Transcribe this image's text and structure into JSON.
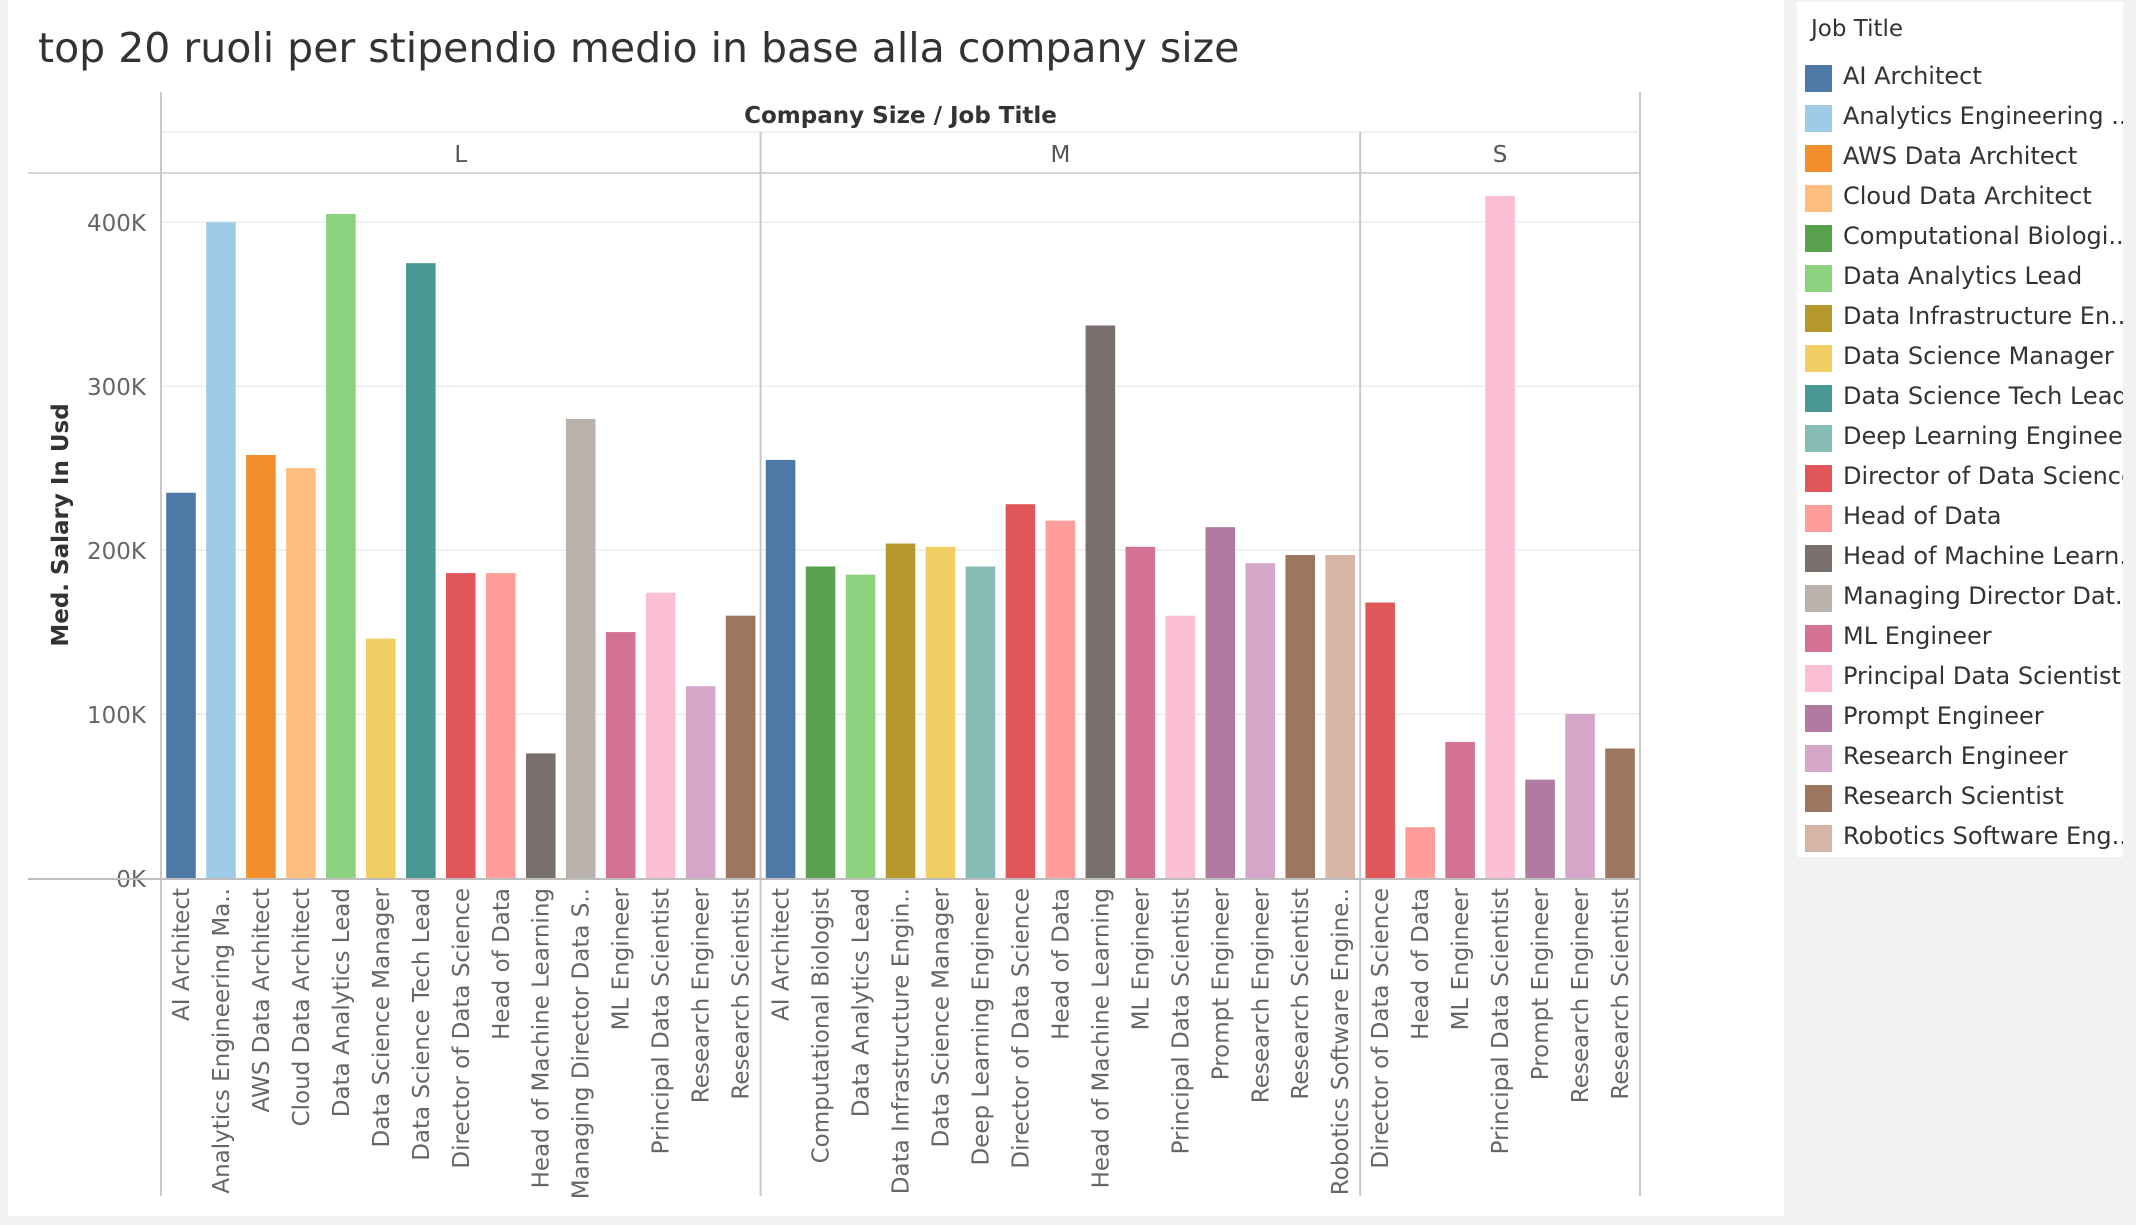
{
  "chart_data": {
    "type": "bar",
    "title": "top 20 ruoli per stipendio medio in base alla company size",
    "header": "Company Size  /  Job Title",
    "ylabel": "Med. Salary In Usd",
    "ylim": [
      0,
      430000
    ],
    "yticks": [
      0,
      100000,
      200000,
      300000,
      400000
    ],
    "ytick_labels": [
      "0K",
      "100K",
      "200K",
      "300K",
      "400K"
    ],
    "grid": true,
    "legend_title": "Job Title",
    "legend_position": "right",
    "legend": [
      {
        "label": "AI Architect",
        "color": "#4e79a7"
      },
      {
        "label": "Analytics Engineering ..",
        "color": "#a0cbe8"
      },
      {
        "label": "AWS Data Architect",
        "color": "#f28e2b"
      },
      {
        "label": "Cloud Data Architect",
        "color": "#ffbe7d"
      },
      {
        "label": "Computational Biologi..",
        "color": "#59a14f"
      },
      {
        "label": "Data Analytics Lead",
        "color": "#8cd17d"
      },
      {
        "label": "Data Infrastructure En..",
        "color": "#b6992d"
      },
      {
        "label": "Data Science Manager",
        "color": "#f1ce63"
      },
      {
        "label": "Data Science Tech Lead",
        "color": "#499894"
      },
      {
        "label": "Deep Learning Engineer",
        "color": "#86bcb6"
      },
      {
        "label": "Director of Data Science",
        "color": "#e15759"
      },
      {
        "label": "Head of Data",
        "color": "#ff9d9a"
      },
      {
        "label": "Head of Machine Learn..",
        "color": "#79706e"
      },
      {
        "label": "Managing Director Dat..",
        "color": "#bab0ac"
      },
      {
        "label": "ML Engineer",
        "color": "#d37295"
      },
      {
        "label": "Principal Data Scientist",
        "color": "#fabfd2"
      },
      {
        "label": "Prompt Engineer",
        "color": "#b07aa1"
      },
      {
        "label": "Research Engineer",
        "color": "#d4a6c8"
      },
      {
        "label": "Research Scientist",
        "color": "#9d7660"
      },
      {
        "label": "Robotics Software Eng..",
        "color": "#d7b5a6"
      }
    ],
    "groups": [
      {
        "name": "L",
        "bars": [
          {
            "label": "AI Architect",
            "value": 235000,
            "color": "#4e79a7"
          },
          {
            "label": "Analytics Engineering Ma..",
            "value": 400000,
            "color": "#a0cbe8"
          },
          {
            "label": "AWS Data Architect",
            "value": 258000,
            "color": "#f28e2b"
          },
          {
            "label": "Cloud Data Architect",
            "value": 250000,
            "color": "#ffbe7d"
          },
          {
            "label": "Data Analytics Lead",
            "value": 405000,
            "color": "#8cd17d"
          },
          {
            "label": "Data Science Manager",
            "value": 146000,
            "color": "#f1ce63"
          },
          {
            "label": "Data Science Tech Lead",
            "value": 375000,
            "color": "#499894"
          },
          {
            "label": "Director of Data Science",
            "value": 186000,
            "color": "#e15759"
          },
          {
            "label": "Head of Data",
            "value": 186000,
            "color": "#ff9d9a"
          },
          {
            "label": "Head of Machine Learning",
            "value": 76000,
            "color": "#79706e"
          },
          {
            "label": "Managing Director Data S..",
            "value": 280000,
            "color": "#bab0ac"
          },
          {
            "label": "ML Engineer",
            "value": 150000,
            "color": "#d37295"
          },
          {
            "label": "Principal Data Scientist",
            "value": 174000,
            "color": "#fabfd2"
          },
          {
            "label": "Research Engineer",
            "value": 117000,
            "color": "#d4a6c8"
          },
          {
            "label": "Research Scientist",
            "value": 160000,
            "color": "#9d7660"
          }
        ]
      },
      {
        "name": "M",
        "bars": [
          {
            "label": "AI Architect",
            "value": 255000,
            "color": "#4e79a7"
          },
          {
            "label": "Computational Biologist",
            "value": 190000,
            "color": "#59a14f"
          },
          {
            "label": "Data Analytics Lead",
            "value": 185000,
            "color": "#8cd17d"
          },
          {
            "label": "Data Infrastructure Engin..",
            "value": 204000,
            "color": "#b6992d"
          },
          {
            "label": "Data Science Manager",
            "value": 202000,
            "color": "#f1ce63"
          },
          {
            "label": "Deep Learning Engineer",
            "value": 190000,
            "color": "#86bcb6"
          },
          {
            "label": "Director of Data Science",
            "value": 228000,
            "color": "#e15759"
          },
          {
            "label": "Head of Data",
            "value": 218000,
            "color": "#ff9d9a"
          },
          {
            "label": "Head of Machine Learning",
            "value": 337000,
            "color": "#79706e"
          },
          {
            "label": "ML Engineer",
            "value": 202000,
            "color": "#d37295"
          },
          {
            "label": "Principal Data Scientist",
            "value": 160000,
            "color": "#fabfd2"
          },
          {
            "label": "Prompt Engineer",
            "value": 214000,
            "color": "#b07aa1"
          },
          {
            "label": "Research Engineer",
            "value": 192000,
            "color": "#d4a6c8"
          },
          {
            "label": "Research Scientist",
            "value": 197000,
            "color": "#9d7660"
          },
          {
            "label": "Robotics Software Engine..",
            "value": 197000,
            "color": "#d7b5a6"
          }
        ]
      },
      {
        "name": "S",
        "bars": [
          {
            "label": "Director of Data Science",
            "value": 168000,
            "color": "#e15759"
          },
          {
            "label": "Head of Data",
            "value": 31000,
            "color": "#ff9d9a"
          },
          {
            "label": "ML Engineer",
            "value": 83000,
            "color": "#d37295"
          },
          {
            "label": "Principal Data Scientist",
            "value": 416000,
            "color": "#fabfd2"
          },
          {
            "label": "Prompt Engineer",
            "value": 60000,
            "color": "#b07aa1"
          },
          {
            "label": "Research Engineer",
            "value": 100000,
            "color": "#d4a6c8"
          },
          {
            "label": "Research Scientist",
            "value": 79000,
            "color": "#9d7660"
          }
        ]
      }
    ]
  }
}
